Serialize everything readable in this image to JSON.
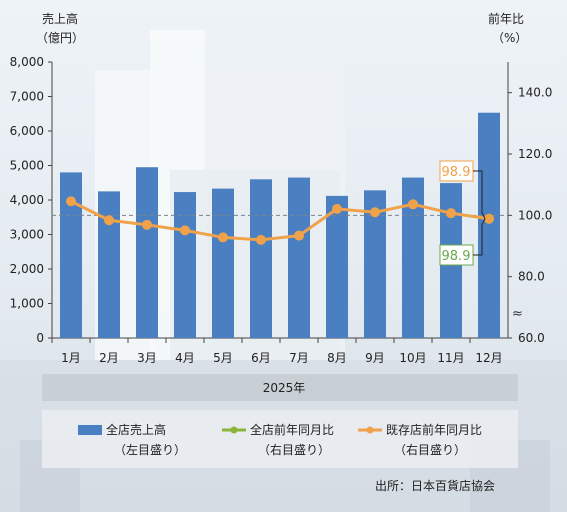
{
  "chart_data": {
    "type": "bar",
    "title": "",
    "categories": [
      "1月",
      "2月",
      "3月",
      "4月",
      "5月",
      "6月",
      "7月",
      "8月",
      "9月",
      "10月",
      "11月",
      "12月"
    ],
    "series": [
      {
        "name": "全店売上高",
        "sub": "（左目盛り）",
        "kind": "bar",
        "axis": "left",
        "values": [
          4800,
          4250,
          4950,
          4230,
          4330,
          4600,
          4650,
          4120,
          4280,
          4650,
          4490,
          6530
        ]
      },
      {
        "name": "全店前年同月比",
        "sub": "（右目盛り）",
        "kind": "line",
        "axis": "right",
        "values": [
          null,
          null,
          null,
          null,
          null,
          null,
          null,
          null,
          null,
          null,
          null,
          98.9
        ]
      },
      {
        "name": "既存店前年同月比",
        "sub": "（右目盛り）",
        "kind": "line",
        "axis": "right",
        "values": [
          104.6,
          98.4,
          96.9,
          95.1,
          92.8,
          92.0,
          93.4,
          102.1,
          101.0,
          103.6,
          100.7,
          98.9
        ]
      }
    ],
    "left_axis": {
      "title_line1": "売上高",
      "title_line2": "（億円）",
      "ylim": [
        0,
        8000
      ],
      "tick_values": [
        0,
        1000,
        2000,
        3000,
        4000,
        5000,
        6000,
        7000,
        8000
      ],
      "tick_labels": [
        "0",
        "1,000",
        "2,000",
        "3,000",
        "4,000",
        "5,000",
        "6,000",
        "7,000",
        "8,000"
      ]
    },
    "right_axis": {
      "title_line1": "前年比",
      "title_line2": "（%）",
      "ylim": [
        60,
        150
      ],
      "tick_values": [
        60,
        80,
        100,
        120,
        140
      ],
      "tick_labels": [
        "60.0",
        "80.0",
        "100.0",
        "120.0",
        "140.0"
      ],
      "break": true
    },
    "reference_line": 100,
    "xlabel": "2025年",
    "annotations": [
      {
        "text": "98.9",
        "series": "既存店前年同月比",
        "color": "#f0a24a"
      },
      {
        "text": "98.9",
        "series": "全店前年同月比",
        "color": "#6aa84f"
      }
    ],
    "source": "出所：日本百貨店協会",
    "colors": {
      "bar": "#4a7fc1",
      "line_all": "#8db33a",
      "line_existing": "#f0a24a",
      "label_band": "#c7cdd3"
    },
    "legend_position": "bottom"
  }
}
